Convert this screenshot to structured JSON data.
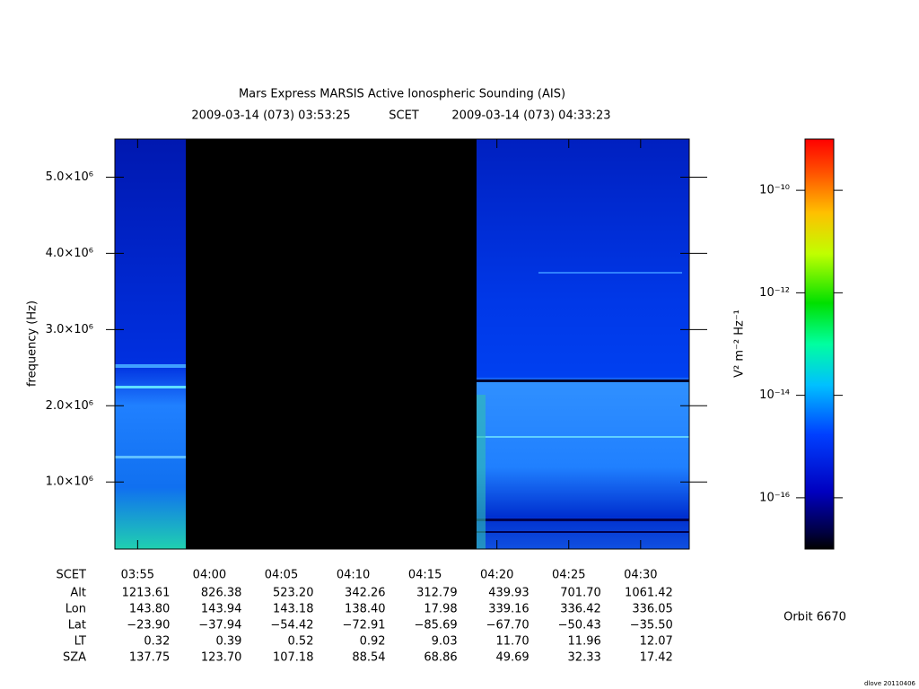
{
  "chart_data": {
    "type": "spectrogram",
    "title": "Mars Express MARSIS Active Ionospheric Sounding (AIS)",
    "start_time": "2009-03-14 (073) 03:53:25",
    "time_system": "SCET",
    "end_time": "2009-03-14 (073) 04:33:23",
    "ylabel": "frequency (Hz)",
    "xlim": [
      "2009-03-14T03:53:25",
      "2009-03-14T04:33:23"
    ],
    "xticks": [
      {
        "value": "2009-03-14T03:55:00",
        "label": "03:55"
      },
      {
        "value": "2009-03-14T04:00:00",
        "label": "04:00"
      },
      {
        "value": "2009-03-14T04:05:00",
        "label": "04:05"
      },
      {
        "value": "2009-03-14T04:10:00",
        "label": "04:10"
      },
      {
        "value": "2009-03-14T04:15:00",
        "label": "04:15"
      },
      {
        "value": "2009-03-14T04:20:00",
        "label": "04:20"
      },
      {
        "value": "2009-03-14T04:25:00",
        "label": "04:25"
      },
      {
        "value": "2009-03-14T04:30:00",
        "label": "04:30"
      }
    ],
    "ylim": [
      120000,
      5500000
    ],
    "yticks": [
      {
        "value": 1000000,
        "label": "1.0×10⁶"
      },
      {
        "value": 2000000,
        "label": "2.0×10⁶"
      },
      {
        "value": 3000000,
        "label": "3.0×10⁶"
      },
      {
        "value": 4000000,
        "label": "4.0×10⁶"
      },
      {
        "value": 5000000,
        "label": "5.0×10⁶"
      }
    ],
    "zlabel": "V² m⁻² Hz⁻¹",
    "zscale": "log",
    "zlim": [
      1e-17,
      1e-09
    ],
    "zticks": [
      {
        "value": 1e-10,
        "label": "10⁻¹⁰"
      },
      {
        "value": 1e-12,
        "label": "10⁻¹²"
      },
      {
        "value": 1e-14,
        "label": "10⁻¹⁴"
      },
      {
        "value": 1e-16,
        "label": "10⁻¹⁶"
      }
    ]
  },
  "ephemeris": {
    "time_label": "SCET",
    "rows": [
      {
        "label": "Alt",
        "values": [
          "1213.61",
          "826.38",
          "523.20",
          "342.26",
          "312.79",
          "439.93",
          "701.70",
          "1061.42"
        ]
      },
      {
        "label": "Lon",
        "values": [
          "143.80",
          "143.94",
          "143.18",
          "138.40",
          "17.98",
          "339.16",
          "336.42",
          "336.05"
        ]
      },
      {
        "label": "Lat",
        "values": [
          "−23.90",
          "−37.94",
          "−54.42",
          "−72.91",
          "−85.69",
          "−67.70",
          "−50.43",
          "−35.50"
        ]
      },
      {
        "label": "LT",
        "values": [
          "0.32",
          "0.39",
          "0.52",
          "0.92",
          "9.03",
          "11.70",
          "11.96",
          "12.07"
        ]
      },
      {
        "label": "SZA",
        "values": [
          "137.75",
          "123.70",
          "107.18",
          "88.54",
          "68.86",
          "49.69",
          "32.33",
          "17.42"
        ]
      }
    ]
  },
  "orbit": "Orbit 6670",
  "footer": "dlove 20110406"
}
